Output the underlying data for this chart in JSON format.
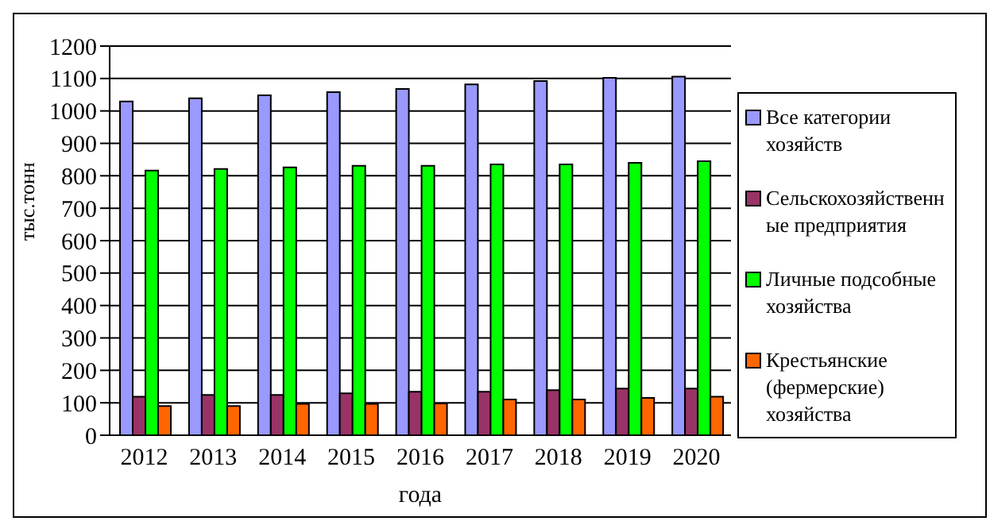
{
  "chart_data": {
    "type": "bar",
    "xlabel": "года",
    "ylabel": "тыс.тонн",
    "categories": [
      "2012",
      "2013",
      "2014",
      "2015",
      "2016",
      "2017",
      "2018",
      "2019",
      "2020"
    ],
    "series": [
      {
        "name": "Все категории хозяйств",
        "color": "#9999ff",
        "values": [
          1029,
          1039,
          1048,
          1058,
          1068,
          1082,
          1092,
          1102,
          1106
        ]
      },
      {
        "name": "Сельскохозяйственные предприятия",
        "color": "#993366",
        "values": [
          119,
          124,
          124,
          129,
          134,
          134,
          139,
          144,
          144
        ]
      },
      {
        "name": "Личные подсобные хозяйства",
        "color": "#00ff00",
        "values": [
          816,
          821,
          826,
          831,
          831,
          835,
          835,
          840,
          845
        ]
      },
      {
        "name": "Крестьянские (фермерские) хозяйства",
        "color": "#ff6600",
        "values": [
          90,
          90,
          97,
          97,
          98,
          110,
          110,
          115,
          119
        ]
      }
    ],
    "ylim": [
      0,
      1200
    ],
    "yticks": [
      0,
      100,
      200,
      300,
      400,
      500,
      600,
      700,
      800,
      900,
      1000,
      1100,
      1200
    ],
    "grid": "y",
    "legend": "right"
  }
}
